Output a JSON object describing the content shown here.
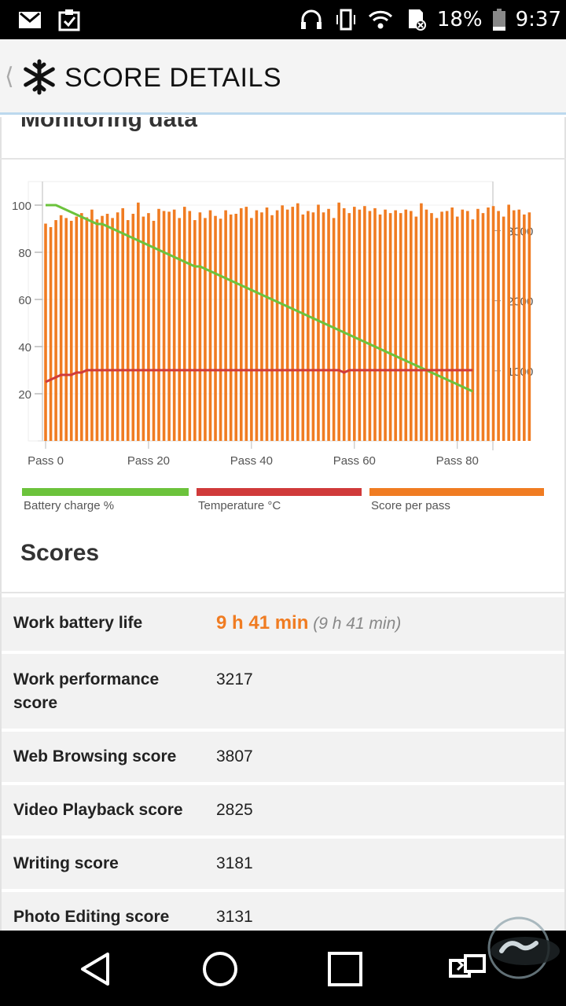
{
  "status_bar": {
    "icons_left": [
      "gmail-icon",
      "clipboard-check-icon"
    ],
    "icons_right": [
      "headphones-icon",
      "vibrate-icon",
      "wifi-icon",
      "sd-card-icon",
      "battery-icon"
    ],
    "battery": "18%",
    "time": "9:37"
  },
  "header": {
    "title": "SCORE DETAILS",
    "back_icon": "chevron-left-icon",
    "app_icon": "snowflake-icon"
  },
  "monitoring": {
    "title": "Monitoring data"
  },
  "chart_data": {
    "type": "bar",
    "x_tick_labels": [
      "Pass 0",
      "Pass 20",
      "Pass 40",
      "Pass 60",
      "Pass 80"
    ],
    "x_range": [
      0,
      86
    ],
    "y_left": {
      "ticks": [
        20,
        40,
        60,
        80,
        100
      ],
      "range": [
        0,
        110
      ]
    },
    "y_right": {
      "ticks": [
        1000,
        2000,
        3000
      ],
      "range": [
        0,
        3700
      ]
    },
    "grid": true,
    "series": [
      {
        "name": "Score per pass",
        "type": "bar",
        "axis": "right",
        "color": "#f07c22",
        "values": [
          3100,
          3050,
          3150,
          3220,
          3180,
          3140,
          3200,
          3250,
          3190,
          3300,
          3160,
          3210,
          3240,
          3180,
          3260,
          3320,
          3150,
          3240,
          3400,
          3200,
          3250,
          3140,
          3310,
          3280,
          3270,
          3300,
          3180,
          3340,
          3280,
          3150,
          3260,
          3180,
          3290,
          3210,
          3170,
          3290,
          3230,
          3240,
          3320,
          3340,
          3180,
          3290,
          3260,
          3330,
          3220,
          3290,
          3360,
          3300,
          3340,
          3390,
          3230,
          3280,
          3260,
          3370,
          3260,
          3310,
          3180,
          3400,
          3320,
          3250,
          3340,
          3300,
          3350,
          3280,
          3320,
          3230,
          3300,
          3250,
          3290,
          3250,
          3300,
          3280,
          3200,
          3390,
          3300,
          3250,
          3180,
          3270,
          3280,
          3330,
          3200,
          3300,
          3280,
          3160,
          3310,
          3250,
          3330,
          3350,
          3280,
          3200,
          3370,
          3290,
          3300,
          3230,
          3260
        ]
      },
      {
        "name": "Battery charge %",
        "type": "line",
        "axis": "left",
        "color": "#6cc33c",
        "values": [
          100,
          100,
          100,
          99,
          98,
          97,
          96,
          95,
          94,
          93,
          92,
          92,
          91,
          90,
          89,
          88,
          87,
          86,
          85,
          84,
          83,
          82,
          81,
          80,
          79,
          78,
          77,
          76,
          75,
          74,
          74,
          73,
          72,
          71,
          70,
          69,
          68,
          67,
          66,
          65,
          64,
          63,
          62,
          61,
          60,
          59,
          58,
          57,
          56,
          55,
          54,
          53,
          52,
          51,
          50,
          49,
          48,
          47,
          46,
          45,
          44,
          43,
          42,
          41,
          40,
          39,
          38,
          37,
          36,
          35,
          34,
          33,
          32,
          31,
          30,
          29,
          28,
          27,
          26,
          25,
          24,
          23,
          22,
          21
        ]
      },
      {
        "name": "Temperature °C",
        "type": "line",
        "axis": "left",
        "color": "#d03a3a",
        "values": [
          25,
          26,
          27,
          28,
          28,
          28,
          29,
          29,
          30,
          30,
          30,
          30,
          30,
          30,
          30,
          30,
          30,
          30,
          30,
          30,
          30,
          30,
          30,
          30,
          30,
          30,
          30,
          30,
          30,
          30,
          30,
          30,
          30,
          30,
          30,
          30,
          30,
          30,
          30,
          30,
          30,
          30,
          30,
          30,
          30,
          30,
          30,
          30,
          30,
          30,
          30,
          30,
          30,
          30,
          30,
          30,
          30,
          30,
          29,
          30,
          30,
          30,
          30,
          30,
          30,
          30,
          30,
          30,
          30,
          30,
          30,
          30,
          30,
          30,
          30,
          30,
          30,
          30,
          30,
          30,
          30,
          30,
          30,
          30
        ]
      }
    ]
  },
  "legend": [
    {
      "label": "Battery charge %",
      "color": "#6cc33c"
    },
    {
      "label": "Temperature °C",
      "color": "#d03a3a"
    },
    {
      "label": "Score per pass",
      "color": "#f07c22"
    }
  ],
  "scores": {
    "title": "Scores",
    "rows": [
      {
        "label": "Work battery life",
        "value": "9 h 41 min",
        "sub": "(9 h 41 min)"
      },
      {
        "label": "Work performance score",
        "value": "3217"
      },
      {
        "label": "Web Browsing score",
        "value": "3807"
      },
      {
        "label": "Video Playback score",
        "value": "2825"
      },
      {
        "label": "Writing score",
        "value": "3181"
      },
      {
        "label": "Photo Editing score",
        "value": "3131"
      }
    ]
  },
  "nav": {
    "buttons": [
      "back-triangle-icon",
      "home-circle-icon",
      "recents-square-icon",
      "screen-mirror-icon"
    ]
  }
}
